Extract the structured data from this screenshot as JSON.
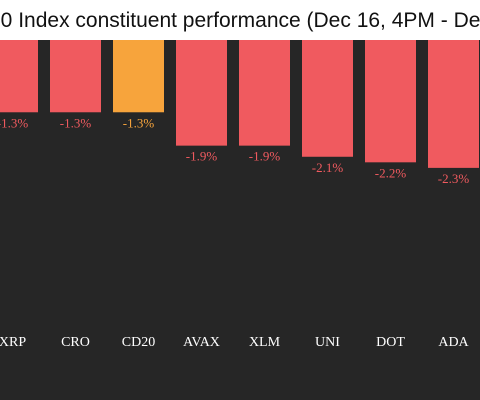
{
  "colors": {
    "background": "#262626",
    "negative": "#f05a5f",
    "highlight": "#f7a43c",
    "text": "#ffffff"
  },
  "chart_data": {
    "type": "bar",
    "title": "20 Index constituent performance (Dec 16, 4PM - De",
    "categories": [
      "XRP",
      "CRO",
      "CD20",
      "AVAX",
      "XLM",
      "UNI",
      "DOT",
      "ADA"
    ],
    "values": [
      -1.3,
      -1.3,
      -1.3,
      -1.9,
      -1.9,
      -2.1,
      -2.2,
      -2.3
    ],
    "labels": [
      "-1.3%",
      "-1.3%",
      "-1.3%",
      "-1.9%",
      "-1.9%",
      "-2.1%",
      "-2.2%",
      "-2.3%"
    ],
    "highlight_category": "CD20",
    "xlabel": "",
    "ylabel": "",
    "grid": false
  }
}
